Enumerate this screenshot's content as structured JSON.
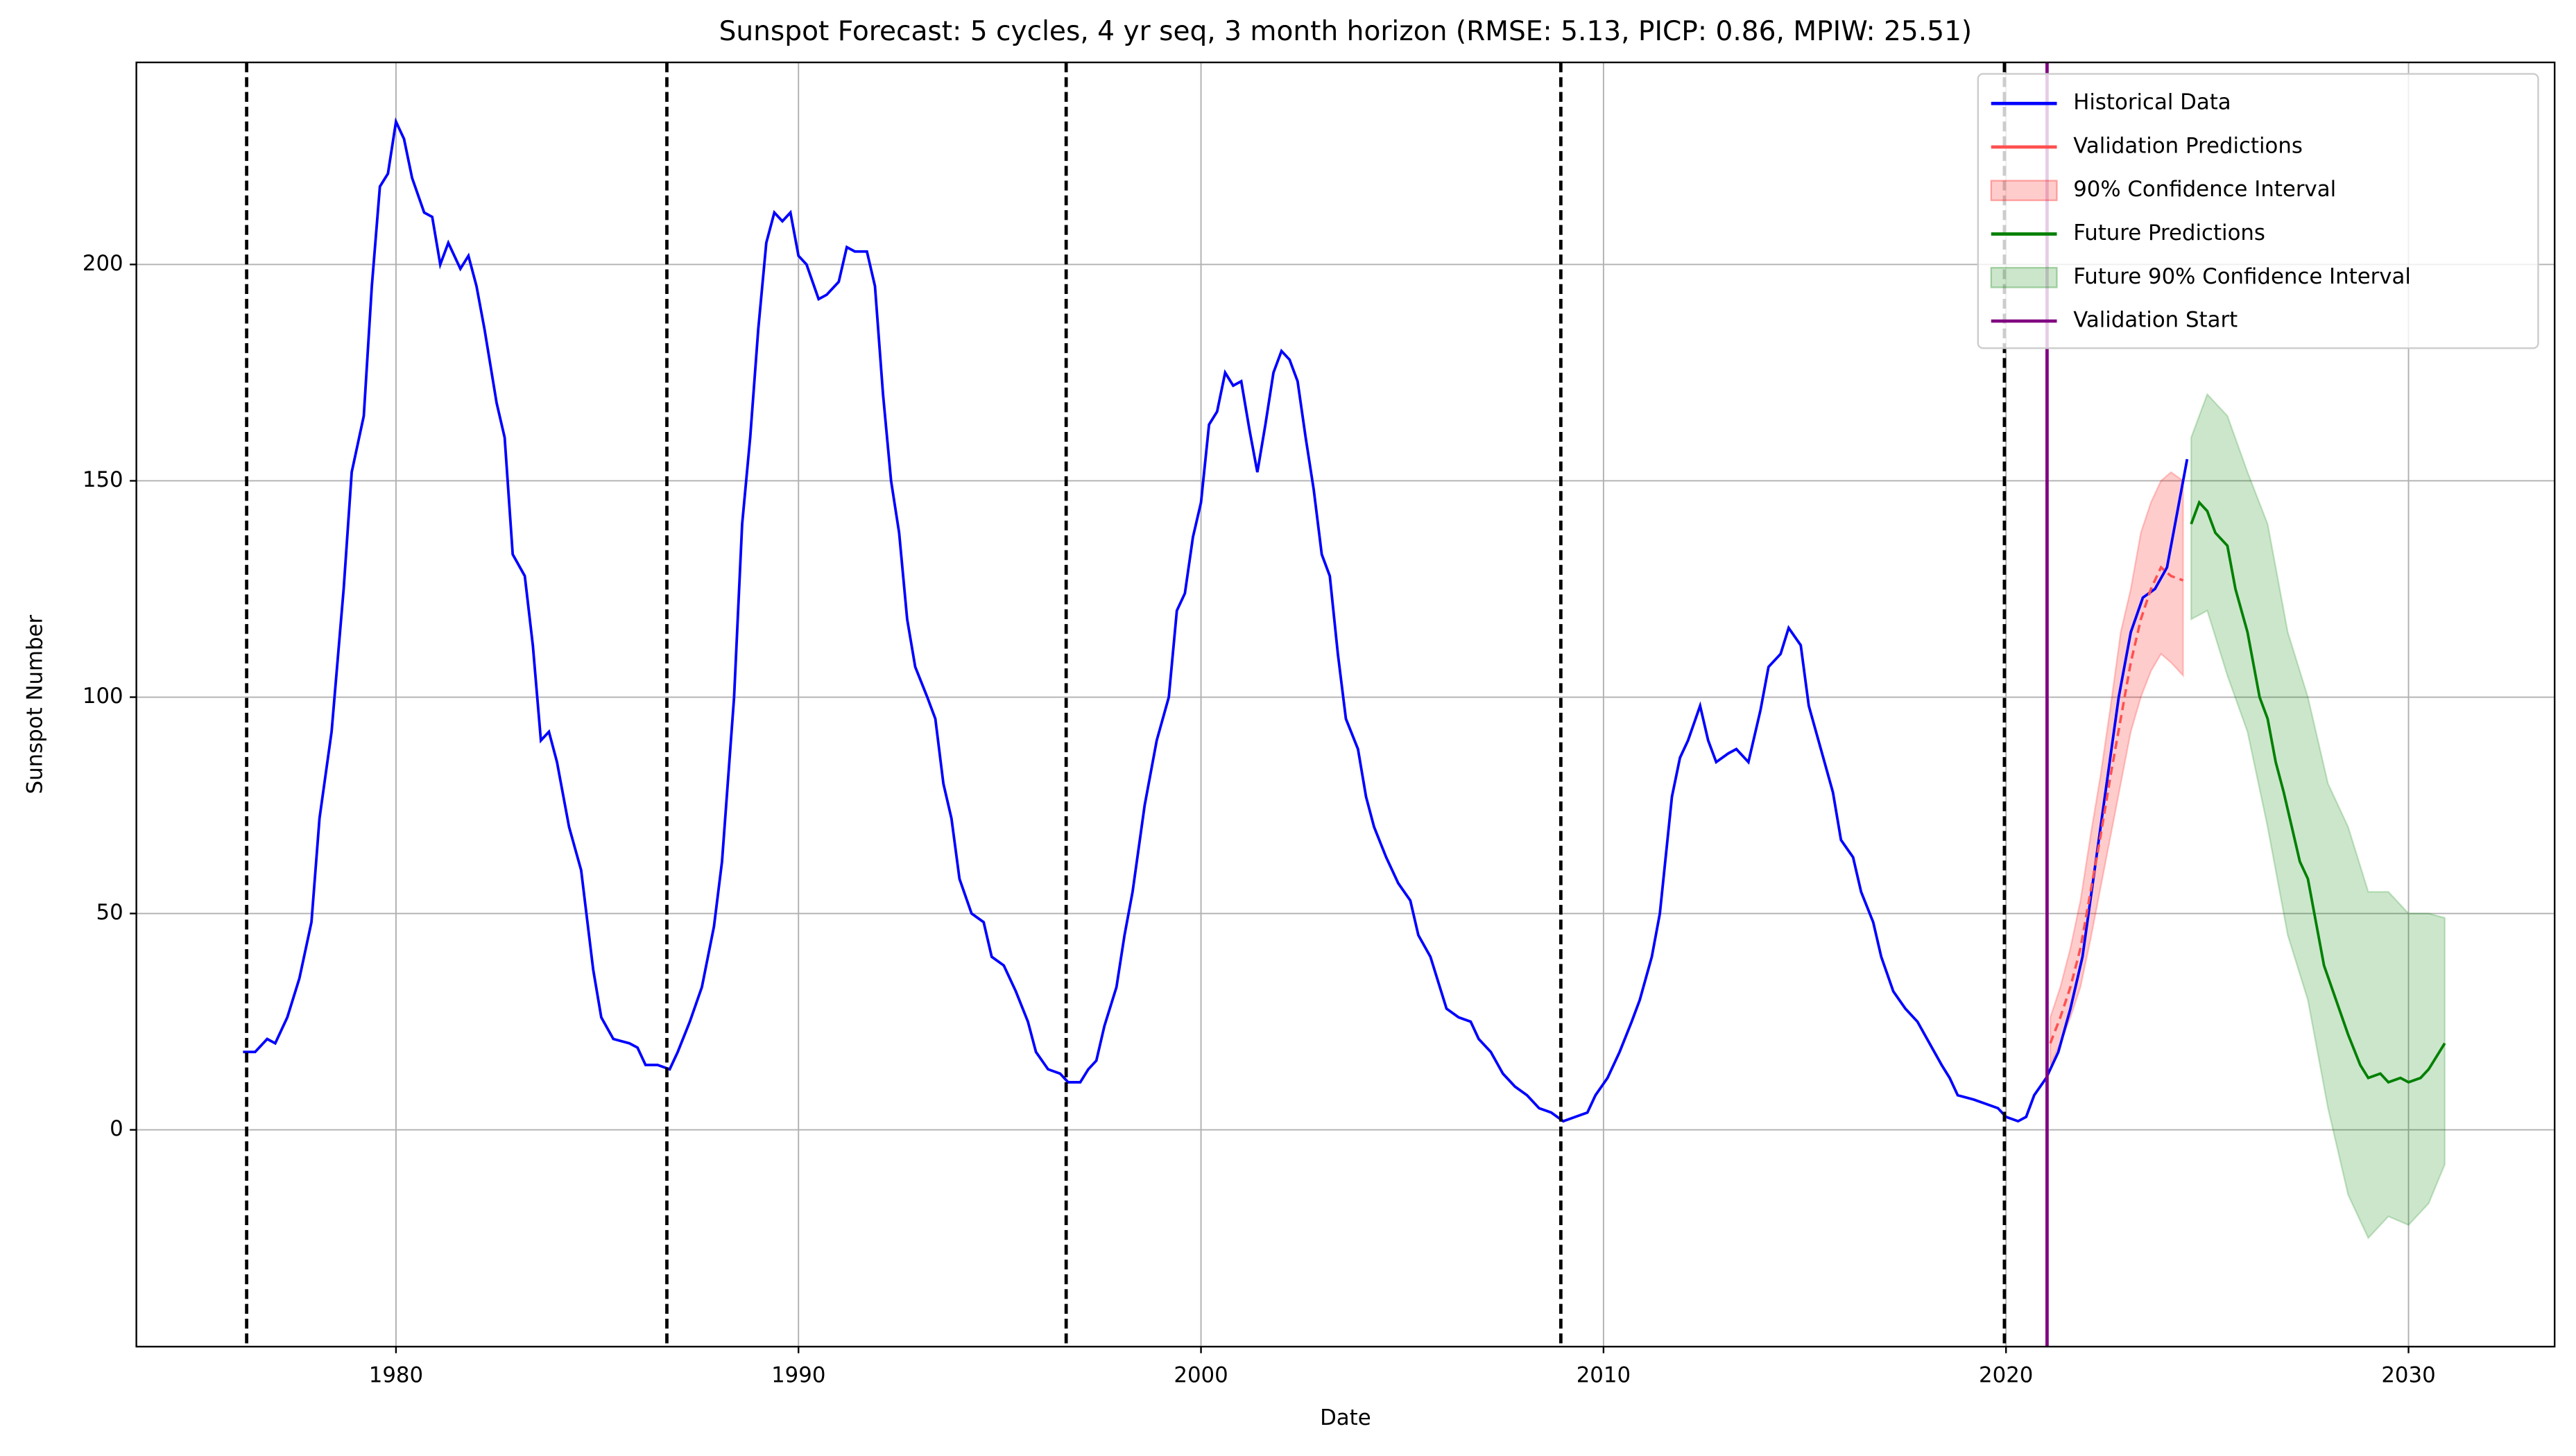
{
  "chart_data": {
    "type": "line",
    "title": "Sunspot Forecast: 5 cycles, 4 yr seq, 3 month horizon (RMSE: 5.13, PICP: 0.86, MPIW: 25.51)",
    "xlabel": "Date",
    "ylabel": "Sunspot Number",
    "xlim": [
      1973.55,
      2033.63
    ],
    "ylim": [
      -50.1,
      246.7
    ],
    "xticks": [
      1980,
      1990,
      2000,
      2010,
      2020,
      2030
    ],
    "yticks": [
      0,
      50,
      100,
      150,
      200
    ],
    "grid": true,
    "legend": "upper right",
    "series": [
      {
        "name": "Historical Data",
        "color": "#0000ff",
        "kind": "line",
        "x": [
          1976.2,
          1976.5,
          1976.8,
          1977.0,
          1977.3,
          1977.6,
          1977.9,
          1978.1,
          1978.4,
          1978.7,
          1978.9,
          1979.2,
          1979.4,
          1979.6,
          1979.8,
          1980.0,
          1980.2,
          1980.4,
          1980.7,
          1980.9,
          1981.1,
          1981.3,
          1981.6,
          1981.8,
          1982.0,
          1982.2,
          1982.5,
          1982.7,
          1982.9,
          1983.2,
          1983.4,
          1983.6,
          1983.8,
          1984.0,
          1984.3,
          1984.6,
          1984.9,
          1985.1,
          1985.4,
          1985.8,
          1986.0,
          1986.2,
          1986.5,
          1986.8,
          1987.0,
          1987.3,
          1987.6,
          1987.9,
          1988.1,
          1988.4,
          1988.6,
          1988.8,
          1989.0,
          1989.2,
          1989.4,
          1989.6,
          1989.8,
          1990.0,
          1990.2,
          1990.5,
          1990.7,
          1991.0,
          1991.2,
          1991.4,
          1991.7,
          1991.9,
          1992.1,
          1992.3,
          1992.5,
          1992.7,
          1992.9,
          1993.2,
          1993.4,
          1993.6,
          1993.8,
          1994.0,
          1994.3,
          1994.6,
          1994.8,
          1995.1,
          1995.4,
          1995.7,
          1995.9,
          1996.2,
          1996.5,
          1996.7,
          1997.0,
          1997.2,
          1997.4,
          1997.6,
          1997.9,
          1998.1,
          1998.3,
          1998.6,
          1998.9,
          1999.2,
          1999.4,
          1999.6,
          1999.8,
          2000.0,
          2000.2,
          2000.4,
          2000.6,
          2000.8,
          2001.0,
          2001.2,
          2001.4,
          2001.6,
          2001.8,
          2002.0,
          2002.2,
          2002.4,
          2002.6,
          2002.8,
          2003.0,
          2003.2,
          2003.4,
          2003.6,
          2003.9,
          2004.1,
          2004.3,
          2004.6,
          2004.9,
          2005.2,
          2005.4,
          2005.7,
          2005.9,
          2006.1,
          2006.4,
          2006.7,
          2006.9,
          2007.2,
          2007.5,
          2007.8,
          2008.1,
          2008.4,
          2008.7,
          2009.0,
          2009.3,
          2009.6,
          2009.8,
          2010.1,
          2010.4,
          2010.7,
          2010.9,
          2011.2,
          2011.4,
          2011.7,
          2011.9,
          2012.1,
          2012.4,
          2012.6,
          2012.8,
          2013.1,
          2013.3,
          2013.6,
          2013.9,
          2014.1,
          2014.4,
          2014.6,
          2014.9,
          2015.1,
          2015.4,
          2015.7,
          2015.9,
          2016.2,
          2016.4,
          2016.7,
          2016.9,
          2017.2,
          2017.5,
          2017.8,
          2018.1,
          2018.4,
          2018.6,
          2018.8,
          2019.2,
          2019.5,
          2019.8,
          2020.0,
          2020.3,
          2020.5,
          2020.7,
          2021.0,
          2021.3,
          2021.6,
          2021.9,
          2022.2,
          2022.5,
          2022.8,
          2023.1,
          2023.4,
          2023.7,
          2024.0,
          2024.2,
          2024.5
        ],
        "values": [
          18,
          18,
          21,
          20,
          26,
          35,
          48,
          72,
          92,
          125,
          152,
          165,
          195,
          218,
          221,
          233,
          229,
          220,
          212,
          211,
          200,
          205,
          199,
          202,
          195,
          185,
          168,
          160,
          133,
          128,
          112,
          90,
          92,
          85,
          70,
          60,
          37,
          26,
          21,
          20,
          19,
          15,
          15,
          14,
          18,
          25,
          33,
          47,
          62,
          100,
          140,
          160,
          185,
          205,
          212,
          210,
          212,
          202,
          200,
          192,
          193,
          196,
          204,
          203,
          203,
          195,
          170,
          150,
          138,
          118,
          107,
          100,
          95,
          80,
          72,
          58,
          50,
          48,
          40,
          38,
          32,
          25,
          18,
          14,
          13,
          11,
          11,
          14,
          16,
          24,
          33,
          45,
          55,
          75,
          90,
          100,
          120,
          124,
          137,
          145,
          163,
          166,
          175,
          172,
          173,
          162,
          152,
          163,
          175,
          180,
          178,
          173,
          160,
          148,
          133,
          128,
          110,
          95,
          88,
          77,
          70,
          63,
          57,
          53,
          45,
          40,
          34,
          28,
          26,
          25,
          21,
          18,
          13,
          10,
          8,
          5,
          4,
          2,
          3,
          4,
          8,
          12,
          18,
          25,
          30,
          40,
          50,
          77,
          86,
          90,
          98,
          90,
          85,
          87,
          88,
          85,
          97,
          107,
          110,
          116,
          112,
          98,
          88,
          78,
          67,
          63,
          55,
          48,
          40,
          32,
          28,
          25,
          20,
          15,
          12,
          8,
          7,
          6,
          5,
          3,
          2,
          3,
          8,
          12,
          18,
          28,
          40,
          60,
          80,
          100,
          115,
          123,
          125,
          130,
          140,
          155
        ]
      },
      {
        "name": "Validation Predictions",
        "color": "#ff5050",
        "kind": "line",
        "x": [
          2021.1,
          2021.35,
          2021.6,
          2021.85,
          2022.1,
          2022.35,
          2022.6,
          2022.85,
          2023.1,
          2023.35,
          2023.6,
          2023.85,
          2024.1,
          2024.4
        ],
        "values": [
          20,
          26,
          33,
          42,
          55,
          68,
          82,
          95,
          108,
          118,
          125,
          130,
          128,
          127
        ]
      },
      {
        "name": "90% Confidence Interval",
        "color": "#ff0000",
        "kind": "band",
        "x": [
          2021.1,
          2021.35,
          2021.6,
          2021.85,
          2022.1,
          2022.35,
          2022.6,
          2022.85,
          2023.1,
          2023.35,
          2023.6,
          2023.85,
          2024.1,
          2024.4
        ],
        "lower": [
          15,
          20,
          26,
          33,
          44,
          56,
          68,
          80,
          92,
          100,
          106,
          110,
          108,
          105
        ],
        "upper": [
          26,
          33,
          42,
          53,
          68,
          82,
          98,
          115,
          125,
          138,
          145,
          150,
          152,
          150
        ]
      },
      {
        "name": "Future Predictions",
        "color": "#008000",
        "kind": "line",
        "x": [
          2024.6,
          2024.8,
          2025.0,
          2025.2,
          2025.5,
          2025.7,
          2026.0,
          2026.3,
          2026.5,
          2026.7,
          2026.9,
          2027.1,
          2027.3,
          2027.5,
          2027.7,
          2027.9,
          2028.2,
          2028.5,
          2028.8,
          2029.0,
          2029.3,
          2029.5,
          2029.8,
          2030.0,
          2030.3,
          2030.5,
          2030.9
        ],
        "values": [
          140,
          145,
          143,
          138,
          135,
          125,
          115,
          100,
          95,
          85,
          78,
          70,
          62,
          58,
          48,
          38,
          30,
          22,
          15,
          12,
          13,
          11,
          12,
          11,
          12,
          14,
          20
        ]
      },
      {
        "name": "Future 90% Confidence Interval",
        "color": "#008000",
        "kind": "band",
        "x": [
          2024.6,
          2025.0,
          2025.5,
          2026.0,
          2026.5,
          2027.0,
          2027.5,
          2028.0,
          2028.5,
          2029.0,
          2029.5,
          2030.0,
          2030.5,
          2030.9
        ],
        "lower": [
          118,
          120,
          105,
          92,
          70,
          45,
          30,
          5,
          -15,
          -25,
          -20,
          -22,
          -17,
          -8
        ],
        "upper": [
          160,
          170,
          165,
          152,
          140,
          115,
          100,
          80,
          70,
          55,
          55,
          50,
          50,
          49
        ]
      }
    ],
    "cycle_boundaries": [
      1976.29,
      1986.73,
      1996.65,
      2008.94,
      2019.96
    ],
    "vlines": [
      {
        "name": "Validation Start",
        "color": "#800080",
        "x": 2021.02
      }
    ]
  }
}
